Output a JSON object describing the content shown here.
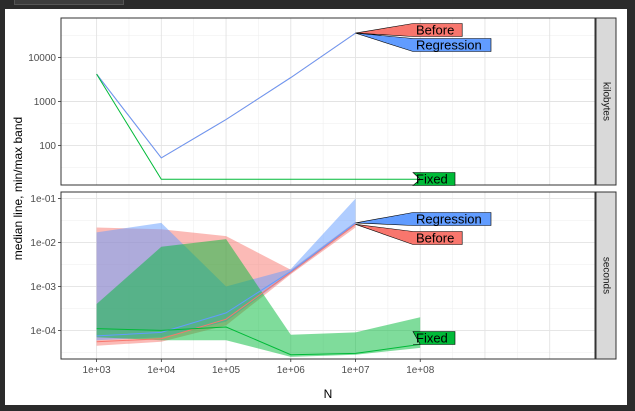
{
  "chart_data": {
    "type": "line",
    "xlabel": "N",
    "ylabel": "median line, min/max band",
    "x_scale": "log10",
    "x_ticks": [
      1000,
      10000,
      100000,
      1000000,
      10000000,
      100000000
    ],
    "x_tick_labels": [
      "1e+03",
      "1e+04",
      "1e+05",
      "1e+06",
      "1e+07",
      "1e+08"
    ],
    "colors": {
      "Before": "#F8766D",
      "Fixed": "#00BA38",
      "Regression": "#619CFF"
    },
    "panels": [
      {
        "strip": "kilobytes",
        "y_scale": "log10",
        "y_ticks": [
          100,
          1000,
          10000
        ],
        "y_tick_labels": [
          "100",
          "1000",
          "10000"
        ],
        "series": [
          {
            "name": "Before",
            "x": [
              1000,
              10000,
              100000,
              1000000,
              10000000
            ],
            "median": [
              4200,
              52,
              390,
              3500,
              36000
            ]
          },
          {
            "name": "Regression",
            "x": [
              1000,
              10000,
              100000,
              1000000,
              10000000
            ],
            "median": [
              4200,
              52,
              390,
              3500,
              36000
            ]
          },
          {
            "name": "Fixed",
            "x": [
              1000,
              10000,
              100000,
              1000000,
              10000000,
              100000000
            ],
            "median": [
              4200,
              17,
              17,
              17,
              17,
              17
            ]
          }
        ],
        "labels": [
          {
            "text": "Before",
            "series": "Before",
            "x": 10000000,
            "y": 36000
          },
          {
            "text": "Regression",
            "series": "Regression",
            "x": 10000000,
            "y": 36000
          },
          {
            "text": "Fixed",
            "series": "Fixed",
            "x": 100000000,
            "y": 17
          }
        ]
      },
      {
        "strip": "seconds",
        "y_scale": "log10",
        "y_ticks": [
          0.0001,
          0.001,
          0.01,
          0.1
        ],
        "y_tick_labels": [
          "1e-04",
          "1e-03",
          "1e-02",
          "1e-01"
        ],
        "series": [
          {
            "name": "Before",
            "x": [
              1000,
              10000,
              100000,
              1000000,
              10000000
            ],
            "median": [
              5.5e-05,
              6.5e-05,
              0.00018,
              0.0021,
              0.026
            ],
            "min": [
              4.5e-05,
              5.5e-05,
              0.00013,
              0.0019,
              0.022
            ],
            "max": [
              0.022,
              0.02,
              0.014,
              0.0024,
              0.03
            ]
          },
          {
            "name": "Regression",
            "x": [
              1000,
              10000,
              100000,
              1000000,
              10000000
            ],
            "median": [
              7.5e-05,
              9e-05,
              0.00025,
              0.0022,
              0.028
            ],
            "min": [
              6e-05,
              7e-05,
              0.00016,
              0.002,
              0.025
            ],
            "max": [
              0.017,
              0.028,
              0.001,
              0.0025,
              0.1
            ]
          },
          {
            "name": "Fixed",
            "x": [
              1000,
              10000,
              100000,
              1000000,
              10000000,
              100000000
            ],
            "median": [
              0.00011,
              0.0001,
              0.00012,
              2.8e-05,
              3e-05,
              4.8e-05
            ],
            "min": [
              7e-05,
              6e-05,
              6e-05,
              2.5e-05,
              2.8e-05,
              4e-05
            ],
            "max": [
              0.0004,
              0.008,
              0.012,
              8e-05,
              9e-05,
              0.0002
            ]
          }
        ],
        "labels": [
          {
            "text": "Regression",
            "series": "Regression",
            "x": 10000000,
            "y": 0.028
          },
          {
            "text": "Before",
            "series": "Before",
            "x": 10000000,
            "y": 0.026
          },
          {
            "text": "Fixed",
            "series": "Fixed",
            "x": 100000000,
            "y": 4.8e-05
          }
        ]
      }
    ]
  }
}
